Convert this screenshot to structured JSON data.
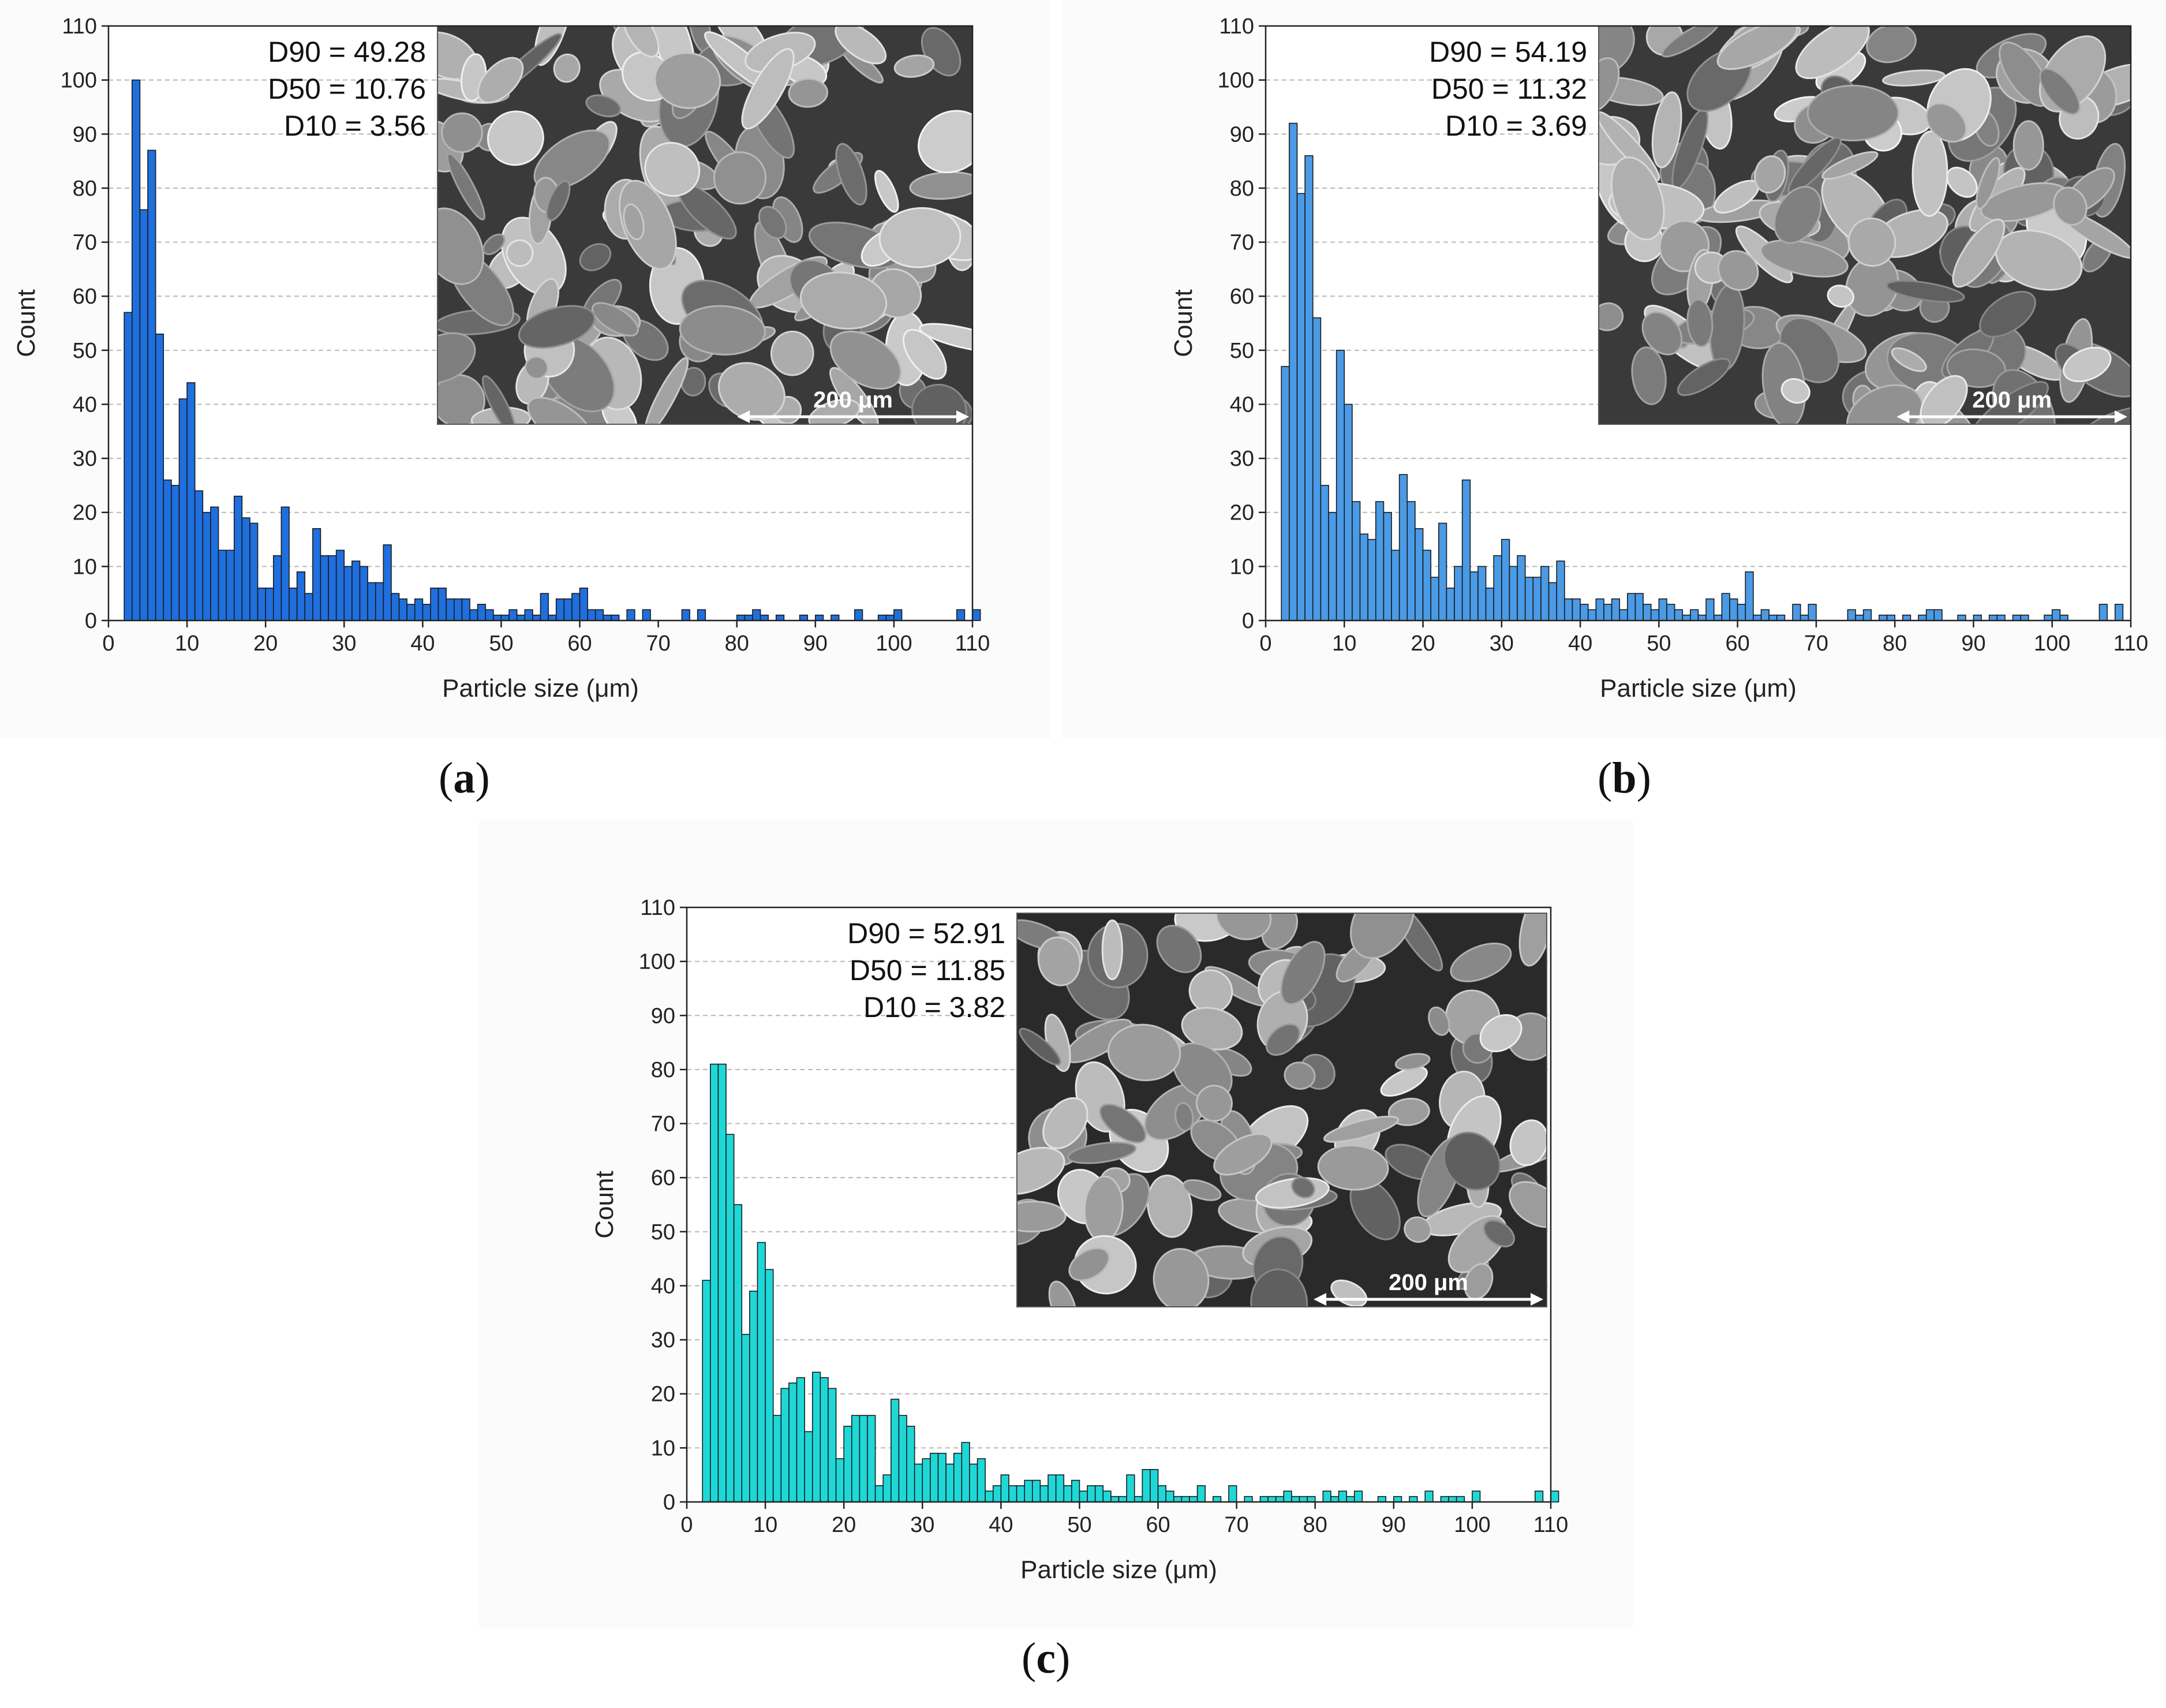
{
  "chart_data": [
    {
      "type": "bar",
      "panel": "a",
      "caption_letter": "a",
      "xlabel": "Particle size (μm)",
      "ylabel": "Count",
      "xlim": [
        0,
        110
      ],
      "ylim": [
        0,
        110
      ],
      "xticks": [
        0,
        10,
        20,
        30,
        40,
        50,
        60,
        70,
        80,
        90,
        100,
        110
      ],
      "yticks": [
        0,
        10,
        20,
        30,
        40,
        50,
        60,
        70,
        80,
        90,
        100,
        110
      ],
      "bin_start": 2,
      "bin_width": 1,
      "color": "#1f6fde",
      "values": [
        57,
        100,
        76,
        87,
        53,
        26,
        25,
        41,
        44,
        24,
        20,
        21,
        13,
        13,
        23,
        19,
        18,
        6,
        6,
        12,
        21,
        6,
        9,
        5,
        17,
        12,
        12,
        13,
        10,
        11,
        10,
        7,
        7,
        14,
        5,
        4,
        3,
        4,
        3,
        6,
        6,
        4,
        4,
        4,
        2,
        3,
        2,
        1,
        1,
        2,
        1,
        2,
        1,
        5,
        1,
        4,
        4,
        5,
        6,
        2,
        2,
        1,
        1,
        0,
        2,
        0,
        2,
        0,
        0,
        0,
        0,
        2,
        0,
        2,
        0,
        0,
        0,
        0,
        1,
        1,
        2,
        1,
        0,
        1,
        0,
        0,
        1,
        0,
        1,
        0,
        1,
        0,
        0,
        2,
        0,
        0,
        1,
        1,
        2,
        0,
        0,
        0,
        0,
        0,
        0,
        0,
        2,
        0,
        2,
        0
      ],
      "stats": [
        "D90 = 49.28",
        "D50 = 10.76",
        "D10 = 3.56"
      ],
      "scale_label": "200 μm"
    },
    {
      "type": "bar",
      "panel": "b",
      "caption_letter": "b",
      "xlabel": "Particle size (μm)",
      "ylabel": "Count",
      "xlim": [
        0,
        110
      ],
      "ylim": [
        0,
        110
      ],
      "xticks": [
        0,
        10,
        20,
        30,
        40,
        50,
        60,
        70,
        80,
        90,
        100,
        110
      ],
      "yticks": [
        0,
        10,
        20,
        30,
        40,
        50,
        60,
        70,
        80,
        90,
        100,
        110
      ],
      "bin_start": 2,
      "bin_width": 1,
      "color": "#4a9ae6",
      "values": [
        47,
        92,
        79,
        86,
        56,
        25,
        20,
        50,
        40,
        22,
        16,
        15,
        22,
        20,
        13,
        27,
        22,
        17,
        13,
        8,
        18,
        6,
        10,
        26,
        9,
        10,
        6,
        12,
        15,
        10,
        12,
        8,
        8,
        10,
        7,
        11,
        4,
        4,
        3,
        2,
        4,
        3,
        4,
        2,
        5,
        5,
        3,
        2,
        4,
        3,
        2,
        1,
        2,
        1,
        4,
        1,
        5,
        4,
        3,
        9,
        1,
        2,
        1,
        1,
        0,
        3,
        1,
        3,
        0,
        0,
        0,
        0,
        2,
        1,
        2,
        0,
        1,
        1,
        0,
        1,
        0,
        1,
        2,
        2,
        0,
        0,
        1,
        0,
        1,
        0,
        1,
        1,
        0,
        1,
        1,
        0,
        0,
        1,
        2,
        1,
        0,
        0,
        0,
        0,
        3,
        0,
        3,
        0,
        0,
        0
      ],
      "stats": [
        "D90 = 54.19",
        "D50 = 11.32",
        "D10 = 3.69"
      ],
      "scale_label": "200 μm"
    },
    {
      "type": "bar",
      "panel": "c",
      "caption_letter": "c",
      "xlabel": "Particle size (μm)",
      "ylabel": "Count",
      "xlim": [
        0,
        110
      ],
      "ylim": [
        0,
        110
      ],
      "xticks": [
        0,
        10,
        20,
        30,
        40,
        50,
        60,
        70,
        80,
        90,
        100,
        110
      ],
      "yticks": [
        0,
        10,
        20,
        30,
        40,
        50,
        60,
        70,
        80,
        90,
        100,
        110
      ],
      "bin_start": 2,
      "bin_width": 1,
      "color": "#1ed8d8",
      "values": [
        41,
        81,
        81,
        68,
        55,
        31,
        39,
        48,
        43,
        16,
        21,
        22,
        23,
        13,
        24,
        23,
        21,
        8,
        14,
        16,
        16,
        16,
        3,
        5,
        19,
        16,
        14,
        7,
        8,
        9,
        9,
        7,
        9,
        11,
        7,
        8,
        2,
        3,
        5,
        3,
        3,
        4,
        4,
        3,
        5,
        5,
        3,
        4,
        2,
        3,
        3,
        2,
        1,
        1,
        5,
        1,
        6,
        6,
        3,
        2,
        1,
        1,
        1,
        3,
        0,
        1,
        0,
        3,
        0,
        1,
        0,
        1,
        1,
        1,
        2,
        1,
        1,
        1,
        0,
        2,
        1,
        2,
        1,
        2,
        0,
        0,
        1,
        0,
        1,
        0,
        1,
        0,
        2,
        0,
        1,
        1,
        1,
        0,
        2,
        0,
        0,
        0,
        0,
        0,
        0,
        0,
        2,
        0,
        2,
        0
      ],
      "stats": [
        "D90 = 52.91",
        "D50 = 11.85",
        "D10 = 3.82"
      ],
      "scale_label": "200 μm"
    }
  ]
}
